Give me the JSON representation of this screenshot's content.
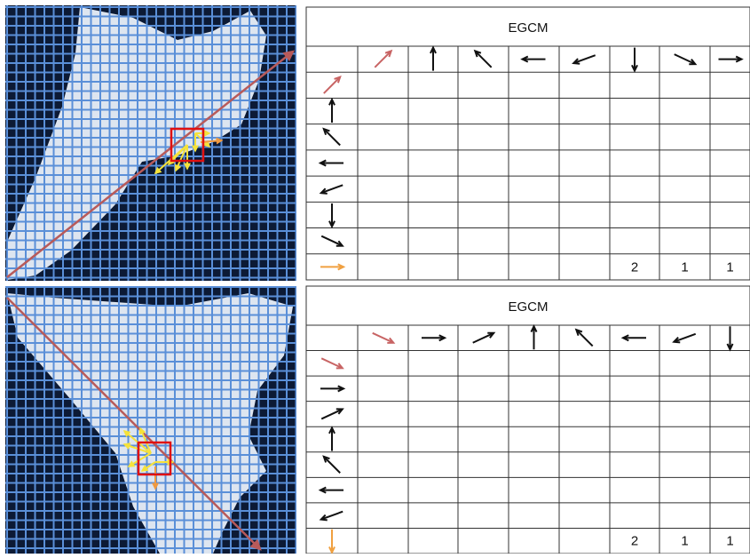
{
  "panels": [
    {
      "table": {
        "title": "EGCM",
        "last_row_values": [
          2,
          1,
          1
        ]
      }
    },
    {
      "table": {
        "title": "EGCM",
        "last_row_values": [
          2,
          1,
          1
        ]
      }
    }
  ]
}
